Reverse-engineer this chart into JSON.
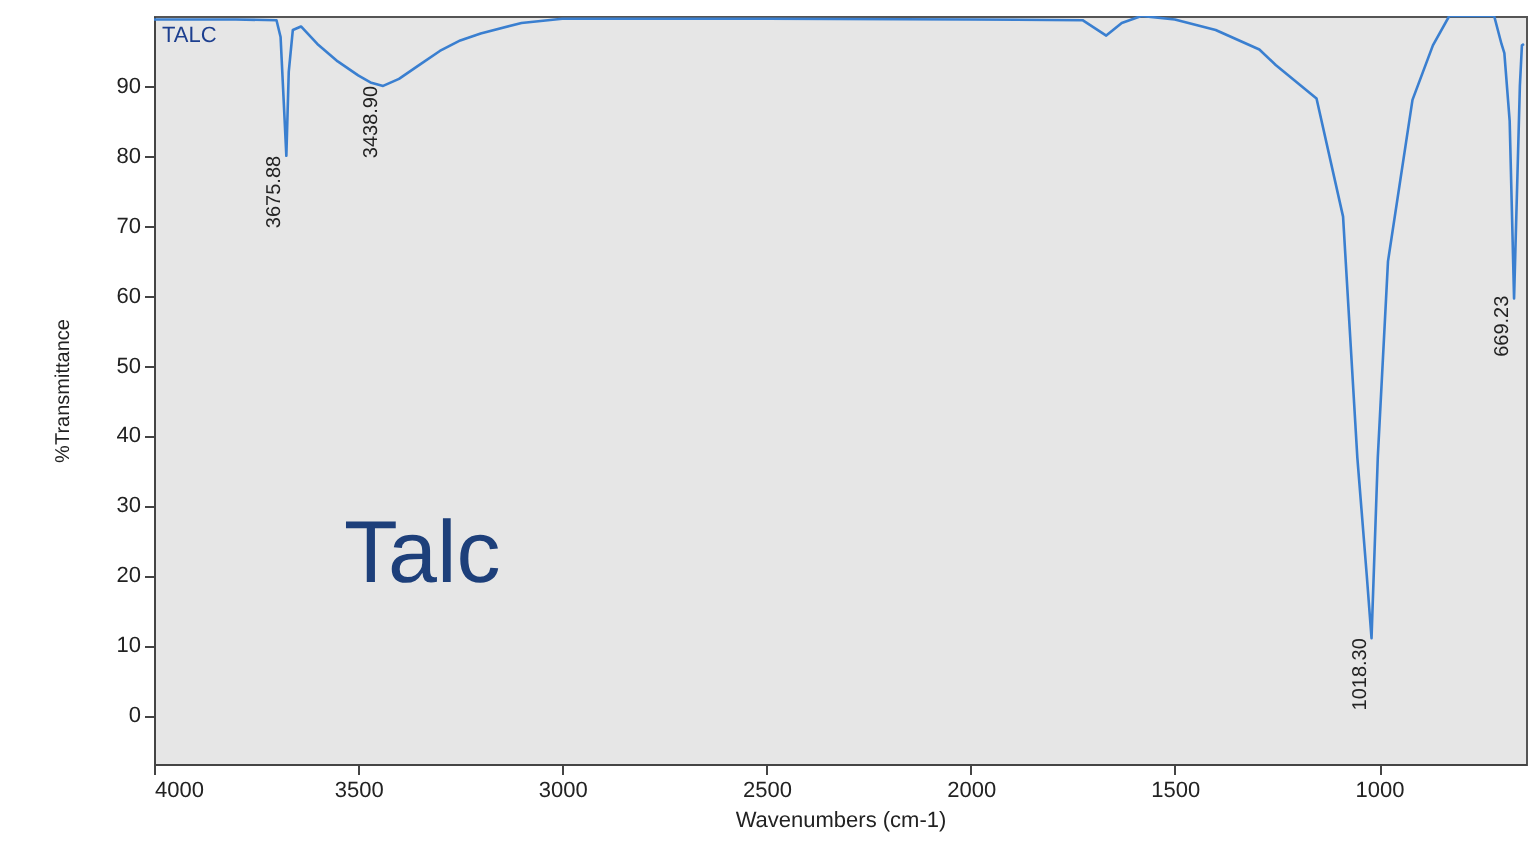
{
  "chart_data": {
    "type": "line",
    "xlabel": "Wavenumbers (cm-1)",
    "ylabel": "%Transmittance",
    "x": [
      4000,
      3800,
      3700,
      3690,
      3680,
      3675.88,
      3670,
      3660,
      3640,
      3600,
      3550,
      3500,
      3470,
      3438.9,
      3400,
      3350,
      3300,
      3250,
      3200,
      3100,
      3000,
      2500,
      2000,
      1726,
      1668,
      1630,
      1582,
      1500,
      1400,
      1293,
      1253,
      1153,
      1088,
      1053,
      1030,
      1018.3,
      1003,
      978,
      918,
      868,
      828,
      760,
      718,
      700,
      693,
      680,
      669.23,
      662,
      655,
      650,
      645
    ],
    "values": [
      99.5,
      99.5,
      99.4,
      97,
      85,
      80,
      92,
      98,
      98.5,
      96,
      93.5,
      91.5,
      90.5,
      90,
      91,
      93,
      95,
      96.5,
      97.5,
      99,
      99.6,
      99.6,
      99.5,
      99.4,
      97.2,
      99,
      100,
      99.5,
      98,
      95.2,
      93,
      88.2,
      71.3,
      36.8,
      20,
      11,
      36.8,
      64.9,
      88,
      95.8,
      100,
      100,
      100,
      96,
      94.7,
      85,
      59.6,
      75,
      90,
      95.8,
      96
    ],
    "color": "#3a7fd0",
    "xlim": [
      4000,
      640
    ],
    "ylim": [
      -7,
      100
    ],
    "xticks": [
      4000,
      3500,
      3000,
      2500,
      2000,
      1500,
      1000
    ],
    "yticks": [
      0,
      10,
      20,
      30,
      40,
      50,
      60,
      70,
      80,
      90
    ],
    "grid": false,
    "marker": "none",
    "line_style": "solid",
    "annotations": [
      "TALC",
      "Talc",
      {
        "text": "3675.88",
        "x": 3675.88,
        "y": 80
      },
      {
        "text": "3438.90",
        "x": 3438.9,
        "y": 90
      },
      {
        "text": "1018.30",
        "x": 1018.3,
        "y": 11
      },
      {
        "text": "669.23",
        "x": 669.23,
        "y": 60
      }
    ]
  }
}
